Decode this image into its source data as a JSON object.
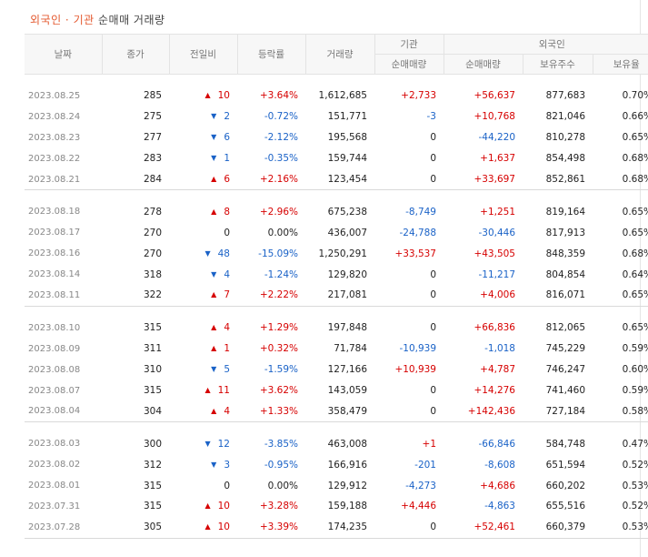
{
  "title": {
    "part1": "외국인 · 기관",
    "part2": "순매매 거래량"
  },
  "colors": {
    "up": "#d60000",
    "down": "#1a62c7",
    "title_accent": "#e4592f"
  },
  "headers": {
    "date": "날짜",
    "close": "종가",
    "change": "전일비",
    "rate": "등락률",
    "volume": "거래량",
    "inst_group": "기관",
    "inst_net": "순매매량",
    "foreign_group": "외국인",
    "foreign_net": "순매매량",
    "foreign_holdings": "보유주수",
    "foreign_ratio": "보유율"
  },
  "groups": [
    [
      {
        "date": "2023.08.25",
        "close": "285",
        "dir": "up",
        "change": "10",
        "rate": "+3.64%",
        "volume": "1,612,685",
        "inst": "+2,733",
        "foreign": "+56,637",
        "holdings": "877,683",
        "ratio": "0.70%"
      },
      {
        "date": "2023.08.24",
        "close": "275",
        "dir": "down",
        "change": "2",
        "rate": "-0.72%",
        "volume": "151,771",
        "inst": "-3",
        "foreign": "+10,768",
        "holdings": "821,046",
        "ratio": "0.66%"
      },
      {
        "date": "2023.08.23",
        "close": "277",
        "dir": "down",
        "change": "6",
        "rate": "-2.12%",
        "volume": "195,568",
        "inst": "0",
        "foreign": "-44,220",
        "holdings": "810,278",
        "ratio": "0.65%"
      },
      {
        "date": "2023.08.22",
        "close": "283",
        "dir": "down",
        "change": "1",
        "rate": "-0.35%",
        "volume": "159,744",
        "inst": "0",
        "foreign": "+1,637",
        "holdings": "854,498",
        "ratio": "0.68%"
      },
      {
        "date": "2023.08.21",
        "close": "284",
        "dir": "up",
        "change": "6",
        "rate": "+2.16%",
        "volume": "123,454",
        "inst": "0",
        "foreign": "+33,697",
        "holdings": "852,861",
        "ratio": "0.68%"
      }
    ],
    [
      {
        "date": "2023.08.18",
        "close": "278",
        "dir": "up",
        "change": "8",
        "rate": "+2.96%",
        "volume": "675,238",
        "inst": "-8,749",
        "foreign": "+1,251",
        "holdings": "819,164",
        "ratio": "0.65%"
      },
      {
        "date": "2023.08.17",
        "close": "270",
        "dir": "flat",
        "change": "0",
        "rate": "0.00%",
        "volume": "436,007",
        "inst": "-24,788",
        "foreign": "-30,446",
        "holdings": "817,913",
        "ratio": "0.65%"
      },
      {
        "date": "2023.08.16",
        "close": "270",
        "dir": "down",
        "change": "48",
        "rate": "-15.09%",
        "volume": "1,250,291",
        "inst": "+33,537",
        "foreign": "+43,505",
        "holdings": "848,359",
        "ratio": "0.68%"
      },
      {
        "date": "2023.08.14",
        "close": "318",
        "dir": "down",
        "change": "4",
        "rate": "-1.24%",
        "volume": "129,820",
        "inst": "0",
        "foreign": "-11,217",
        "holdings": "804,854",
        "ratio": "0.64%"
      },
      {
        "date": "2023.08.11",
        "close": "322",
        "dir": "up",
        "change": "7",
        "rate": "+2.22%",
        "volume": "217,081",
        "inst": "0",
        "foreign": "+4,006",
        "holdings": "816,071",
        "ratio": "0.65%"
      }
    ],
    [
      {
        "date": "2023.08.10",
        "close": "315",
        "dir": "up",
        "change": "4",
        "rate": "+1.29%",
        "volume": "197,848",
        "inst": "0",
        "foreign": "+66,836",
        "holdings": "812,065",
        "ratio": "0.65%"
      },
      {
        "date": "2023.08.09",
        "close": "311",
        "dir": "up",
        "change": "1",
        "rate": "+0.32%",
        "volume": "71,784",
        "inst": "-10,939",
        "foreign": "-1,018",
        "holdings": "745,229",
        "ratio": "0.59%"
      },
      {
        "date": "2023.08.08",
        "close": "310",
        "dir": "down",
        "change": "5",
        "rate": "-1.59%",
        "volume": "127,166",
        "inst": "+10,939",
        "foreign": "+4,787",
        "holdings": "746,247",
        "ratio": "0.60%"
      },
      {
        "date": "2023.08.07",
        "close": "315",
        "dir": "up",
        "change": "11",
        "rate": "+3.62%",
        "volume": "143,059",
        "inst": "0",
        "foreign": "+14,276",
        "holdings": "741,460",
        "ratio": "0.59%"
      },
      {
        "date": "2023.08.04",
        "close": "304",
        "dir": "up",
        "change": "4",
        "rate": "+1.33%",
        "volume": "358,479",
        "inst": "0",
        "foreign": "+142,436",
        "holdings": "727,184",
        "ratio": "0.58%"
      }
    ],
    [
      {
        "date": "2023.08.03",
        "close": "300",
        "dir": "down",
        "change": "12",
        "rate": "-3.85%",
        "volume": "463,008",
        "inst": "+1",
        "foreign": "-66,846",
        "holdings": "584,748",
        "ratio": "0.47%"
      },
      {
        "date": "2023.08.02",
        "close": "312",
        "dir": "down",
        "change": "3",
        "rate": "-0.95%",
        "volume": "166,916",
        "inst": "-201",
        "foreign": "-8,608",
        "holdings": "651,594",
        "ratio": "0.52%"
      },
      {
        "date": "2023.08.01",
        "close": "315",
        "dir": "flat",
        "change": "0",
        "rate": "0.00%",
        "volume": "129,912",
        "inst": "-4,273",
        "foreign": "+4,686",
        "holdings": "660,202",
        "ratio": "0.53%"
      },
      {
        "date": "2023.07.31",
        "close": "315",
        "dir": "up",
        "change": "10",
        "rate": "+3.28%",
        "volume": "159,188",
        "inst": "+4,446",
        "foreign": "-4,863",
        "holdings": "655,516",
        "ratio": "0.52%"
      },
      {
        "date": "2023.07.28",
        "close": "305",
        "dir": "up",
        "change": "10",
        "rate": "+3.39%",
        "volume": "174,235",
        "inst": "0",
        "foreign": "+52,461",
        "holdings": "660,379",
        "ratio": "0.53%"
      }
    ]
  ]
}
